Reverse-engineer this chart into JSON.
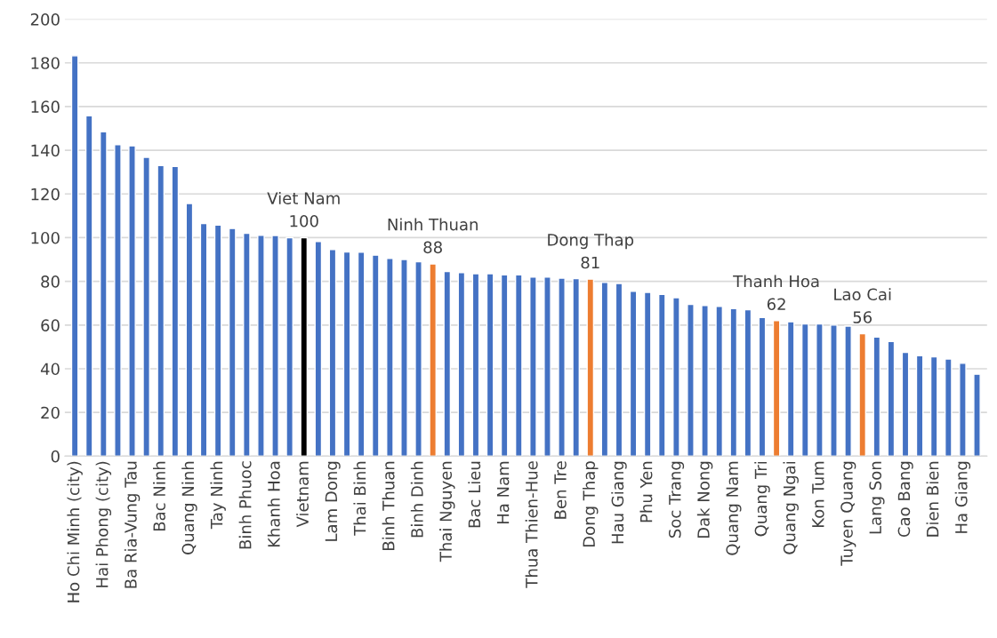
{
  "chart_data": {
    "type": "bar",
    "categories": [
      "Ho Chi Minh (city)",
      null,
      "Hai Phong (city)",
      null,
      "Ba Ria-Vung Tau",
      null,
      "Bac Ninh",
      null,
      "Quang Ninh",
      null,
      "Tay Ninh",
      null,
      "Binh Phuoc",
      null,
      "Khanh Hoa",
      null,
      "Vietnam",
      null,
      "Lam Dong",
      null,
      "Thai Binh",
      null,
      "Binh Thuan",
      null,
      "Binh Dinh",
      null,
      "Thai Nguyen",
      null,
      "Bac Lieu",
      null,
      "Ha Nam",
      null,
      "Thua Thien-Hue",
      null,
      "Ben Tre",
      null,
      "Dong Thap",
      null,
      "Hau Giang",
      null,
      "Phu Yen",
      null,
      "Soc Trang",
      null,
      "Dak Nong",
      null,
      "Quang Nam",
      null,
      "Quang Tri",
      null,
      "Quang Ngai",
      null,
      "Kon Tum",
      null,
      "Tuyen Quang",
      null,
      "Lang Son",
      null,
      "Cao Bang",
      null,
      "Dien Bien",
      null,
      "Ha Giang",
      null
    ],
    "values": [
      183.2,
      155.8,
      148.5,
      142.6,
      142,
      136.8,
      133,
      132.6,
      115.6,
      106.5,
      105.8,
      104.2,
      102,
      101.1,
      101,
      100,
      100,
      98.2,
      94.6,
      93.5,
      93.4,
      92,
      90.5,
      90,
      89,
      88,
      84.5,
      84,
      83.5,
      83.5,
      83,
      83,
      82,
      82,
      81.5,
      81.3,
      81,
      79.5,
      79,
      75.5,
      75,
      74,
      72.5,
      69.5,
      69,
      68.5,
      67.5,
      67,
      63.5,
      62,
      61.5,
      60.5,
      60.5,
      60,
      59.5,
      56,
      54.5,
      52.5,
      47.5,
      46,
      45.5,
      44.5,
      42.5,
      37.5
    ],
    "colors": [
      "#4472c4",
      "#4472c4",
      "#4472c4",
      "#4472c4",
      "#4472c4",
      "#4472c4",
      "#4472c4",
      "#4472c4",
      "#4472c4",
      "#4472c4",
      "#4472c4",
      "#4472c4",
      "#4472c4",
      "#4472c4",
      "#4472c4",
      "#4472c4",
      "#000000",
      "#4472c4",
      "#4472c4",
      "#4472c4",
      "#4472c4",
      "#4472c4",
      "#4472c4",
      "#4472c4",
      "#4472c4",
      "#ed7d31",
      "#4472c4",
      "#4472c4",
      "#4472c4",
      "#4472c4",
      "#4472c4",
      "#4472c4",
      "#4472c4",
      "#4472c4",
      "#4472c4",
      "#4472c4",
      "#ed7d31",
      "#4472c4",
      "#4472c4",
      "#4472c4",
      "#4472c4",
      "#4472c4",
      "#4472c4",
      "#4472c4",
      "#4472c4",
      "#4472c4",
      "#4472c4",
      "#4472c4",
      "#4472c4",
      "#ed7d31",
      "#4472c4",
      "#4472c4",
      "#4472c4",
      "#4472c4",
      "#4472c4",
      "#ed7d31",
      "#4472c4",
      "#4472c4",
      "#4472c4",
      "#4472c4",
      "#4472c4",
      "#4472c4",
      "#4472c4",
      "#4472c4"
    ],
    "value_labels": [
      null,
      null,
      null,
      null,
      null,
      null,
      null,
      null,
      null,
      null,
      null,
      null,
      null,
      null,
      null,
      null,
      "Viet Nam\n100",
      null,
      null,
      null,
      null,
      null,
      null,
      null,
      null,
      "Ninh Thuan\n88",
      null,
      null,
      null,
      null,
      null,
      null,
      null,
      null,
      null,
      null,
      "Dong Thap\n81",
      null,
      null,
      null,
      null,
      null,
      null,
      null,
      null,
      null,
      null,
      null,
      null,
      "Thanh Hoa\n62",
      null,
      null,
      null,
      null,
      null,
      "Lao Cai\n56",
      null,
      null,
      null,
      null,
      null,
      null,
      null,
      null
    ],
    "ylim": [
      0,
      200
    ],
    "yticks": [
      0,
      20,
      40,
      60,
      80,
      100,
      120,
      140,
      160,
      180,
      200
    ],
    "grid": "y",
    "legend": false
  }
}
